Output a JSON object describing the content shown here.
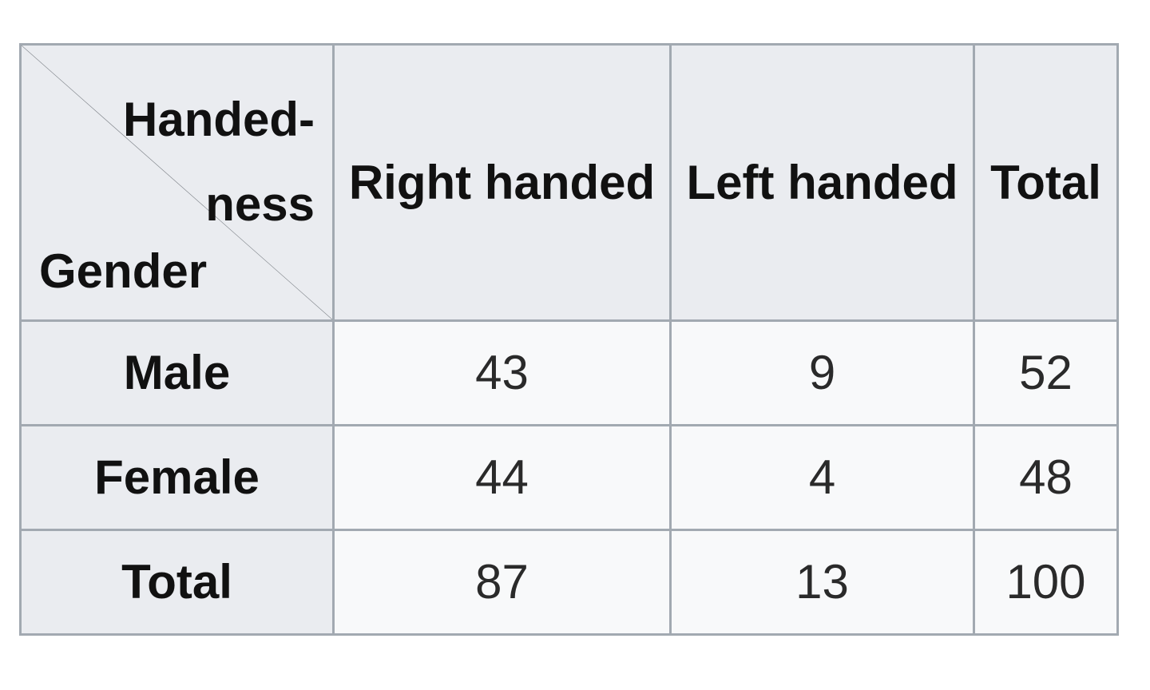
{
  "table": {
    "corner": {
      "column_variable_line1": "Handed-",
      "column_variable_line2": "ness",
      "row_variable": "Gender"
    },
    "columns": [
      "Right handed",
      "Left handed",
      "Total"
    ],
    "rows": [
      {
        "label": "Male",
        "values": [
          "43",
          "9",
          "52"
        ]
      },
      {
        "label": "Female",
        "values": [
          "44",
          "4",
          "48"
        ]
      },
      {
        "label": "Total",
        "values": [
          "87",
          "13",
          "100"
        ]
      }
    ]
  },
  "colors": {
    "header_bg": "#eaecf0",
    "cell_bg": "#f8f9fa",
    "border": "#a2a9b1",
    "text": "#202122"
  }
}
